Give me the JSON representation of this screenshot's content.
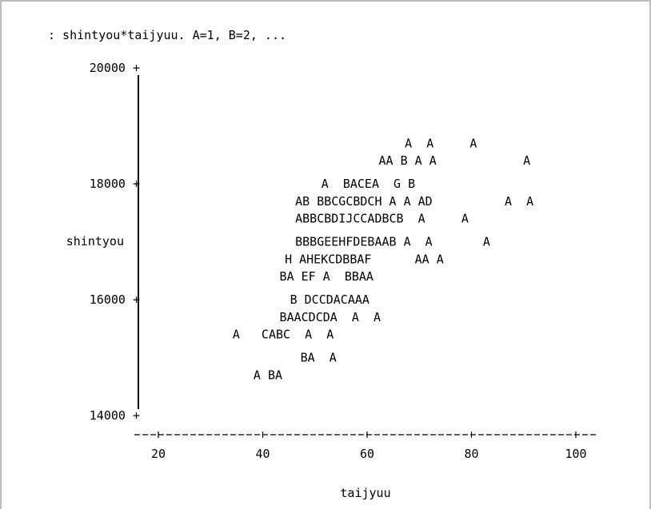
{
  "chart_data": {
    "type": "scatter",
    "title": ": shintyou*taijyuu. A=1, B=2, ...",
    "xlabel": "taijyuu",
    "ylabel": "shintyou",
    "x_ticks": [
      "20",
      "40",
      "60",
      "80",
      "100"
    ],
    "y_ticks": [
      "20000 +",
      "18000 +",
      "16000 +",
      "14000 +"
    ],
    "x_axis_line": "---+-------------+-------------+-------------+-------------+---",
    "rows": [
      {
        "y": 18700,
        "text": "A  A     A"
      },
      {
        "y": 18400,
        "text": "AA B A A            A"
      },
      {
        "y": 18000,
        "text": "A  BACEA  G B"
      },
      {
        "y": 17700,
        "text": "AB BBCGCBDCH A A AD          A  A"
      },
      {
        "y": 17400,
        "text": "ABBCBDIJCCADBCB  A     A"
      },
      {
        "y": 17000,
        "text": "BBBGEEHFDEBAAB A  A       A"
      },
      {
        "y": 16700,
        "text": "H AHEKCDBBAF      AA A"
      },
      {
        "y": 16400,
        "text": "BA EF A  BBAA"
      },
      {
        "y": 16000,
        "text": "B DCCDACAAA"
      },
      {
        "y": 15700,
        "text": "BAACDCDA  A  A"
      },
      {
        "y": 15400,
        "text": "A   CABC  A  A"
      },
      {
        "y": 15000,
        "text": "BA  A"
      },
      {
        "y": 14700,
        "text": "A BA"
      }
    ],
    "row_start_x": [
      68,
      63,
      52,
      47,
      47,
      47,
      45,
      44,
      46,
      44,
      35,
      48,
      39
    ],
    "xlim": [
      15.5,
      104.5
    ],
    "ylim": [
      14000,
      20000
    ]
  }
}
